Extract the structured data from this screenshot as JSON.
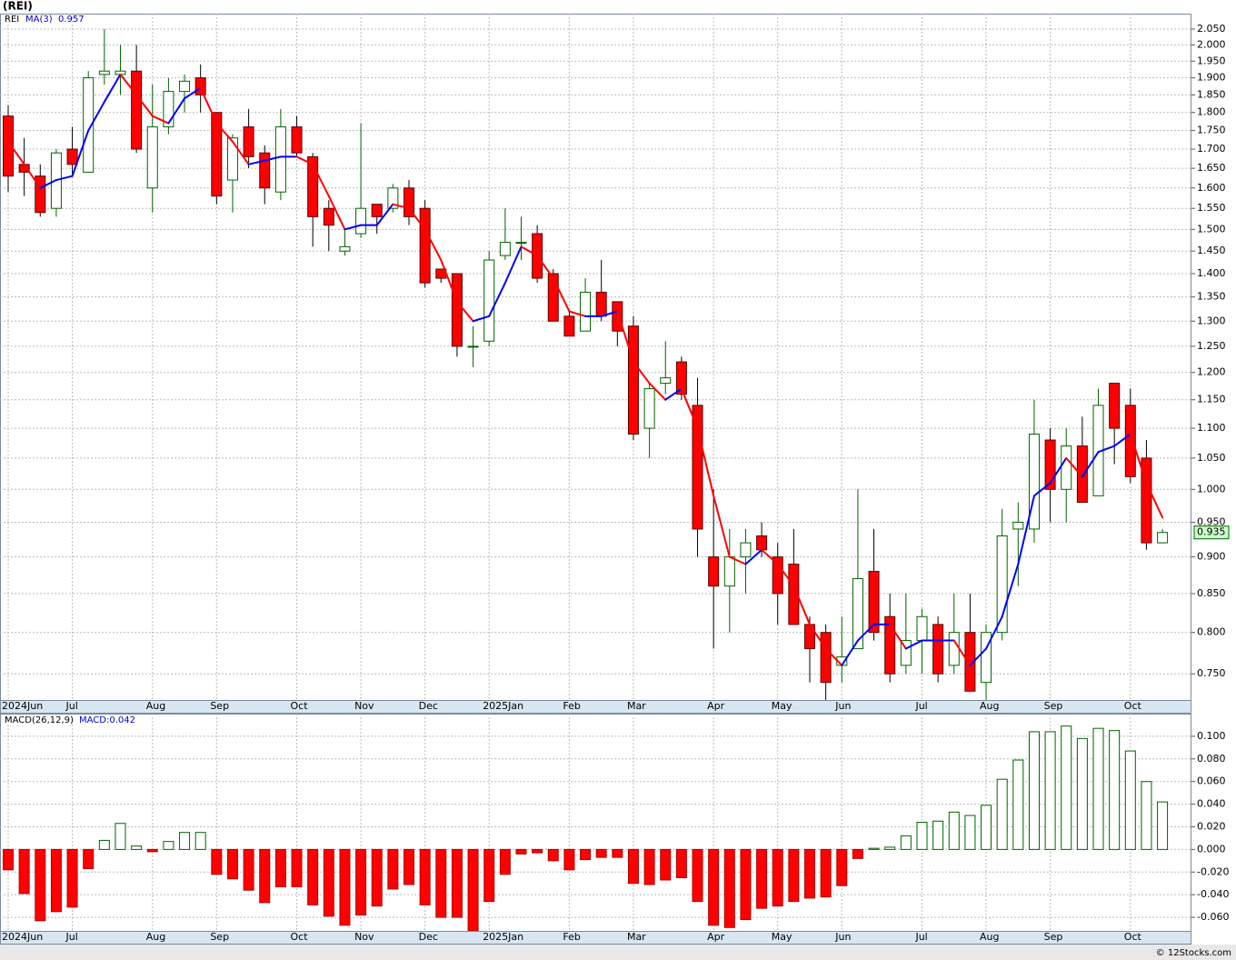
{
  "chart_data": [
    {
      "type": "candlestick",
      "title": "(REI)",
      "log_scale": true,
      "grid": true,
      "categories": [
        "2024Jun",
        null,
        null,
        null,
        "Jul",
        null,
        null,
        null,
        null,
        "Aug",
        null,
        null,
        null,
        "Sep",
        null,
        null,
        null,
        null,
        "Oct",
        null,
        null,
        null,
        "Nov",
        null,
        null,
        null,
        "Dec",
        null,
        null,
        null,
        "2025Jan",
        null,
        null,
        null,
        null,
        "Feb",
        null,
        null,
        null,
        "Mar",
        null,
        null,
        null,
        null,
        "Apr",
        null,
        null,
        null,
        "May",
        null,
        null,
        null,
        "Jun",
        null,
        null,
        null,
        null,
        "Jul",
        null,
        null,
        null,
        "Aug",
        null,
        null,
        null,
        "Sep",
        null,
        null,
        null,
        null,
        "Oct",
        null,
        null
      ],
      "ylim": [
        0.72,
        2.1
      ],
      "yticks": [
        {
          "value": 2.05,
          "label": "2.050"
        },
        {
          "value": 2.0,
          "label": "2.000"
        },
        {
          "value": 1.95,
          "label": "1.950"
        },
        {
          "value": 1.9,
          "label": "1.900"
        },
        {
          "value": 1.85,
          "label": "1.850"
        },
        {
          "value": 1.8,
          "label": "1.800"
        },
        {
          "value": 1.75,
          "label": "1.750"
        },
        {
          "value": 1.7,
          "label": "1.700"
        },
        {
          "value": 1.65,
          "label": "1.650"
        },
        {
          "value": 1.6,
          "label": "1.600"
        },
        {
          "value": 1.55,
          "label": "1.550"
        },
        {
          "value": 1.5,
          "label": "1.500"
        },
        {
          "value": 1.45,
          "label": "1.450"
        },
        {
          "value": 1.4,
          "label": "1.400"
        },
        {
          "value": 1.35,
          "label": "1.350"
        },
        {
          "value": 1.3,
          "label": "1.300"
        },
        {
          "value": 1.25,
          "label": "1.250"
        },
        {
          "value": 1.2,
          "label": "1.200"
        },
        {
          "value": 1.15,
          "label": "1.150"
        },
        {
          "value": 1.1,
          "label": "1.100"
        },
        {
          "value": 1.05,
          "label": "1.050"
        },
        {
          "value": 1.0,
          "label": "1.000"
        },
        {
          "value": 0.95,
          "label": "0.950"
        },
        {
          "value": 0.9,
          "label": "0.900"
        },
        {
          "value": 0.85,
          "label": "0.850"
        },
        {
          "value": 0.8,
          "label": "0.800"
        },
        {
          "value": 0.75,
          "label": "0.750"
        }
      ],
      "series": [
        {
          "name": "REI",
          "up_color": "#006400",
          "down_color": "#ff0000",
          "open": [
            1.79,
            1.66,
            1.63,
            1.55,
            1.7,
            1.64,
            1.91,
            1.91,
            1.92,
            1.6,
            1.76,
            1.86,
            1.9,
            1.8,
            1.62,
            1.76,
            1.69,
            1.59,
            1.76,
            1.68,
            1.55,
            1.45,
            1.49,
            1.56,
            1.55,
            1.6,
            1.55,
            1.41,
            1.4,
            1.25,
            1.26,
            1.44,
            1.47,
            1.49,
            1.4,
            1.31,
            1.28,
            1.36,
            1.34,
            1.29,
            1.1,
            1.18,
            1.22,
            1.14,
            0.9,
            0.86,
            0.9,
            0.93,
            0.9,
            0.89,
            0.81,
            0.8,
            0.76,
            0.78,
            0.88,
            0.82,
            0.76,
            0.79,
            0.81,
            0.76,
            0.8,
            0.74,
            0.8,
            0.94,
            0.94,
            1.08,
            1.0,
            1.07,
            0.99,
            1.18,
            1.14,
            1.05,
            0.92
          ],
          "high": [
            1.82,
            1.73,
            1.66,
            1.7,
            1.76,
            1.92,
            2.05,
            2.0,
            2.0,
            1.88,
            1.9,
            1.91,
            1.94,
            1.8,
            1.74,
            1.81,
            1.71,
            1.81,
            1.79,
            1.69,
            1.57,
            1.5,
            1.77,
            1.56,
            1.61,
            1.62,
            1.57,
            1.41,
            1.4,
            1.29,
            1.45,
            1.55,
            1.53,
            1.51,
            1.41,
            1.32,
            1.39,
            1.43,
            1.34,
            1.31,
            1.18,
            1.26,
            1.23,
            1.19,
            1.0,
            0.94,
            0.94,
            0.95,
            0.92,
            0.94,
            0.82,
            0.81,
            0.82,
            1.0,
            0.94,
            0.85,
            0.85,
            0.83,
            0.82,
            0.85,
            0.85,
            0.81,
            0.97,
            0.98,
            1.15,
            1.1,
            1.1,
            1.12,
            1.17,
            1.18,
            1.17,
            1.08,
            0.94
          ],
          "low": [
            1.59,
            1.58,
            1.53,
            1.53,
            1.63,
            1.64,
            1.88,
            1.85,
            1.69,
            1.54,
            1.74,
            1.8,
            1.8,
            1.56,
            1.54,
            1.65,
            1.56,
            1.57,
            1.68,
            1.46,
            1.45,
            1.44,
            1.48,
            1.49,
            1.54,
            1.51,
            1.37,
            1.38,
            1.23,
            1.21,
            1.25,
            1.43,
            1.43,
            1.38,
            1.3,
            1.27,
            1.28,
            1.3,
            1.25,
            1.08,
            1.05,
            1.16,
            1.15,
            0.9,
            0.78,
            0.8,
            0.85,
            0.9,
            0.81,
            0.81,
            0.74,
            0.72,
            0.74,
            0.78,
            0.79,
            0.74,
            0.75,
            0.75,
            0.74,
            0.75,
            0.73,
            0.72,
            0.79,
            0.86,
            0.92,
            0.95,
            0.95,
            0.98,
            0.99,
            1.04,
            1.01,
            0.91,
            0.92
          ],
          "close": [
            1.63,
            1.64,
            1.54,
            1.69,
            1.66,
            1.9,
            1.92,
            1.92,
            1.7,
            1.76,
            1.86,
            1.89,
            1.85,
            1.58,
            1.73,
            1.68,
            1.6,
            1.76,
            1.69,
            1.53,
            1.51,
            1.46,
            1.55,
            1.53,
            1.6,
            1.53,
            1.38,
            1.39,
            1.25,
            1.25,
            1.43,
            1.47,
            1.47,
            1.39,
            1.3,
            1.27,
            1.36,
            1.31,
            1.28,
            1.09,
            1.17,
            1.19,
            1.16,
            0.94,
            0.86,
            0.9,
            0.92,
            0.91,
            0.85,
            0.81,
            0.78,
            0.74,
            0.77,
            0.87,
            0.8,
            0.75,
            0.79,
            0.82,
            0.75,
            0.8,
            0.73,
            0.8,
            0.93,
            0.95,
            1.09,
            1.0,
            1.07,
            0.98,
            1.14,
            1.1,
            1.02,
            0.92,
            0.935
          ]
        },
        {
          "name": "MA(3)",
          "up_color": "#0000ff",
          "down_color": "#ff0000",
          "values": [
            1.72,
            1.66,
            1.6,
            1.62,
            1.63,
            1.75,
            1.83,
            1.91,
            1.85,
            1.79,
            1.77,
            1.84,
            1.87,
            1.77,
            1.72,
            1.66,
            1.67,
            1.68,
            1.68,
            1.66,
            1.58,
            1.5,
            1.51,
            1.51,
            1.56,
            1.55,
            1.5,
            1.43,
            1.34,
            1.3,
            1.31,
            1.38,
            1.46,
            1.44,
            1.39,
            1.32,
            1.31,
            1.31,
            1.32,
            1.22,
            1.18,
            1.15,
            1.17,
            1.1,
            0.99,
            0.9,
            0.89,
            0.91,
            0.89,
            0.86,
            0.81,
            0.78,
            0.76,
            0.79,
            0.81,
            0.81,
            0.78,
            0.79,
            0.79,
            0.79,
            0.76,
            0.78,
            0.82,
            0.89,
            0.99,
            1.01,
            1.05,
            1.02,
            1.06,
            1.07,
            1.09,
            1.01,
            0.957
          ]
        }
      ]
    },
    {
      "type": "bar",
      "title": "MACD(26,12,9)",
      "grid": true,
      "categories": [
        "2024Jun",
        null,
        null,
        null,
        "Jul",
        null,
        null,
        null,
        null,
        "Aug",
        null,
        null,
        null,
        "Sep",
        null,
        null,
        null,
        null,
        "Oct",
        null,
        null,
        null,
        "Nov",
        null,
        null,
        null,
        "Dec",
        null,
        null,
        null,
        "2025Jan",
        null,
        null,
        null,
        null,
        "Feb",
        null,
        null,
        null,
        "Mar",
        null,
        null,
        null,
        null,
        "Apr",
        null,
        null,
        null,
        "May",
        null,
        null,
        null,
        "Jun",
        null,
        null,
        null,
        null,
        "Jul",
        null,
        null,
        null,
        "Aug",
        null,
        null,
        null,
        "Sep",
        null,
        null,
        null,
        null,
        "Oct",
        null,
        null
      ],
      "ylim": [
        -0.072,
        0.12
      ],
      "yticks": [
        {
          "value": 0.1,
          "label": "0.100"
        },
        {
          "value": 0.08,
          "label": "0.080"
        },
        {
          "value": 0.06,
          "label": "0.060"
        },
        {
          "value": 0.04,
          "label": "0.040"
        },
        {
          "value": 0.02,
          "label": "0.020"
        },
        {
          "value": 0,
          "label": "0.000"
        },
        {
          "value": -0.02,
          "label": "-0.020"
        },
        {
          "value": -0.04,
          "label": "-0.040"
        },
        {
          "value": -0.06,
          "label": "-0.060"
        }
      ],
      "series": [
        {
          "name": "MACD:0.042",
          "up_color": "#006400",
          "down_color": "#ff0000",
          "values": [
            -0.018,
            -0.039,
            -0.063,
            -0.055,
            -0.051,
            -0.017,
            0.008,
            0.023,
            0.003,
            -0.002,
            0.007,
            0.015,
            0.015,
            -0.022,
            -0.026,
            -0.036,
            -0.047,
            -0.033,
            -0.033,
            -0.049,
            -0.059,
            -0.067,
            -0.058,
            -0.05,
            -0.035,
            -0.031,
            -0.049,
            -0.06,
            -0.06,
            -0.072,
            -0.046,
            -0.022,
            -0.004,
            -0.003,
            -0.01,
            -0.018,
            -0.009,
            -0.007,
            -0.007,
            -0.03,
            -0.031,
            -0.027,
            -0.025,
            -0.046,
            -0.067,
            -0.069,
            -0.062,
            -0.052,
            -0.05,
            -0.046,
            -0.043,
            -0.042,
            -0.032,
            -0.008,
            0.001,
            0.002,
            0.012,
            0.024,
            0.025,
            0.033,
            0.03,
            0.039,
            0.062,
            0.079,
            0.104,
            0.104,
            0.109,
            0.098,
            0.107,
            0.105,
            0.087,
            0.06,
            0.042
          ]
        }
      ]
    }
  ],
  "footer": "© 12Stocks.com"
}
